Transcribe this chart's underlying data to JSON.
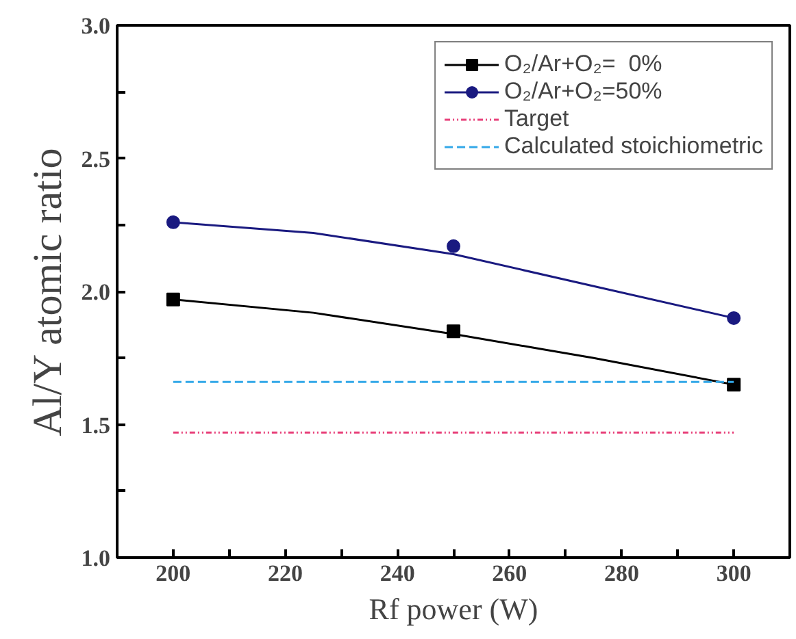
{
  "chart_data": {
    "type": "line",
    "xlabel": "Rf power (W)",
    "ylabel": "Al/Y atomic ratio",
    "xlim": [
      190,
      310
    ],
    "ylim": [
      1.0,
      3.0
    ],
    "xticks": [
      200,
      {
        "value": 210,
        "label": null
      },
      220,
      {
        "value": 230,
        "label": null
      },
      240,
      {
        "value": 250,
        "label": null
      },
      260,
      {
        "value": 270,
        "label": null
      },
      280,
      {
        "value": 290,
        "label": null
      },
      300
    ],
    "yticks": [
      {
        "value": 1.0,
        "label": "1.0"
      },
      {
        "value": 1.25,
        "label": null
      },
      {
        "value": 1.5,
        "label": "1.5"
      },
      {
        "value": 1.75,
        "label": null
      },
      {
        "value": 2.0,
        "label": "2.0"
      },
      {
        "value": 2.25,
        "label": null
      },
      {
        "value": 2.5,
        "label": "2.5"
      },
      {
        "value": 2.75,
        "label": null
      },
      {
        "value": 3.0,
        "label": "3.0"
      }
    ],
    "grid": false,
    "legend": "top right",
    "series": [
      {
        "name": "O₂/Ar+O₂=  0%",
        "type": "scatter",
        "marker": "square",
        "color": "#000000",
        "x": [
          200,
          250,
          300
        ],
        "values": [
          1.97,
          1.85,
          1.65
        ]
      },
      {
        "color": "#000000",
        "line_style": "solid",
        "x": [
          200,
          225,
          250,
          275,
          300
        ],
        "values": [
          1.97,
          1.92,
          1.84,
          1.75,
          1.65
        ]
      },
      {
        "name": "O₂/Ar+O₂=50%",
        "type": "scatter",
        "marker": "circle",
        "color": "#1a1a80",
        "x": [
          200,
          250,
          300
        ],
        "values": [
          2.26,
          2.17,
          1.9
        ]
      },
      {
        "color": "#1a1a80",
        "line_style": "solid",
        "x": [
          200,
          225,
          250,
          275,
          300
        ],
        "values": [
          2.26,
          2.22,
          2.14,
          2.02,
          1.9
        ]
      },
      {
        "name": "Target",
        "color": "#e8407a",
        "line_style": "dashdotdot",
        "x": [
          200,
          300
        ],
        "values": [
          1.47,
          1.47
        ]
      },
      {
        "name": "Calculated stoichiometric",
        "color": "#33a8e8",
        "line_style": "dashed",
        "x": [
          200,
          300
        ],
        "values": [
          1.66,
          1.66
        ]
      }
    ]
  }
}
